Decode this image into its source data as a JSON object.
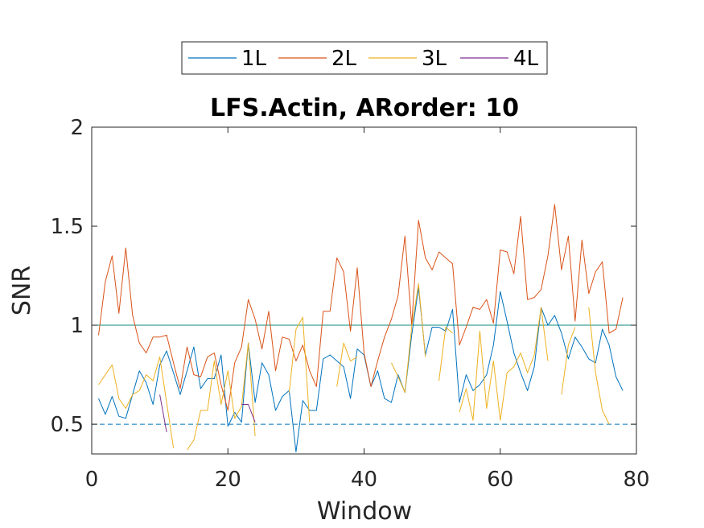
{
  "chart_data": {
    "type": "line",
    "title": "LFS.Actin, ARorder: 10",
    "xlabel": "Window",
    "ylabel": "SNR",
    "xlim": [
      0,
      80
    ],
    "ylim": [
      0.35,
      2.0
    ],
    "xticks": [
      0,
      20,
      40,
      60,
      80
    ],
    "yticks": [
      0.5,
      1,
      1.5,
      2
    ],
    "xtick_labels": [
      "0",
      "20",
      "40",
      "60",
      "80"
    ],
    "ytick_labels": [
      "0.5",
      "1",
      "1.5",
      "2"
    ],
    "grid": false,
    "legend_placement": "top-center outside",
    "reference_lines": [
      {
        "y": 2.0,
        "style": "dashed",
        "color": "#0072BD"
      },
      {
        "y": 1.0,
        "style": "solid",
        "color": "#0E8A7A"
      },
      {
        "y": 0.5,
        "style": "dashed",
        "color": "#0072BD"
      }
    ],
    "series": [
      {
        "name": "1L",
        "color": "#0072BD",
        "x": [
          1,
          2,
          3,
          4,
          5,
          6,
          7,
          8,
          9,
          10,
          11,
          12,
          13,
          14,
          15,
          16,
          17,
          18,
          19,
          20,
          21,
          22,
          23,
          24,
          25,
          26,
          27,
          28,
          29,
          30,
          31,
          32,
          33,
          34,
          35,
          36,
          37,
          38,
          39,
          40,
          41,
          42,
          43,
          44,
          45,
          46,
          47,
          48,
          49,
          50,
          51,
          52,
          53,
          54,
          55,
          56,
          57,
          58,
          59,
          60,
          61,
          62,
          63,
          64,
          65,
          66,
          67,
          68,
          69,
          70,
          71,
          72,
          73,
          74,
          75,
          76,
          77,
          78
        ],
        "y": [
          0.63,
          0.55,
          0.64,
          0.54,
          0.53,
          0.65,
          0.77,
          0.71,
          0.6,
          0.8,
          0.87,
          0.76,
          0.65,
          0.77,
          0.89,
          0.68,
          0.73,
          0.73,
          0.85,
          0.49,
          0.56,
          0.51,
          0.91,
          0.61,
          0.81,
          0.75,
          0.57,
          0.64,
          0.67,
          0.36,
          0.62,
          0.57,
          0.57,
          0.83,
          0.85,
          0.82,
          0.79,
          0.63,
          0.88,
          0.85,
          0.69,
          0.77,
          0.63,
          0.61,
          0.75,
          0.66,
          0.95,
          1.19,
          0.85,
          0.99,
          0.99,
          0.97,
          1.08,
          0.61,
          0.75,
          0.67,
          0.7,
          0.75,
          0.9,
          1.17,
          1.02,
          0.86,
          0.76,
          0.67,
          0.79,
          1.09,
          1.0,
          1.05,
          0.96,
          0.83,
          0.94,
          0.89,
          0.83,
          0.81,
          0.98,
          0.9,
          0.74,
          0.67
        ]
      },
      {
        "name": "2L",
        "color": "#D95319",
        "x": [
          1,
          2,
          3,
          4,
          5,
          6,
          7,
          8,
          9,
          10,
          11,
          12,
          13,
          14,
          15,
          16,
          17,
          18,
          19,
          20,
          21,
          22,
          23,
          24,
          25,
          26,
          27,
          28,
          29,
          30,
          31,
          32,
          33,
          34,
          35,
          36,
          37,
          38,
          39,
          40,
          41,
          42,
          43,
          44,
          45,
          46,
          47,
          48,
          49,
          50,
          51,
          52,
          53,
          54,
          55,
          56,
          57,
          58,
          59,
          60,
          61,
          62,
          63,
          64,
          65,
          66,
          67,
          68,
          69,
          70,
          71,
          72,
          73,
          74,
          75,
          76,
          77,
          78
        ],
        "y": [
          0.95,
          1.22,
          1.35,
          1.06,
          1.39,
          1.05,
          0.91,
          0.86,
          0.94,
          0.94,
          0.95,
          0.81,
          0.68,
          0.89,
          0.75,
          0.74,
          0.84,
          0.86,
          0.7,
          0.57,
          0.81,
          0.89,
          1.13,
          1.03,
          0.88,
          1.07,
          0.77,
          0.94,
          0.93,
          0.82,
          0.9,
          0.77,
          0.69,
          1.07,
          1.07,
          1.34,
          1.27,
          0.97,
          1.29,
          0.86,
          0.69,
          0.82,
          0.94,
          1.03,
          1.15,
          1.45,
          1.0,
          1.53,
          1.34,
          1.28,
          1.37,
          1.34,
          1.31,
          0.9,
          0.99,
          1.09,
          1.08,
          1.13,
          1.01,
          1.38,
          1.37,
          1.26,
          1.55,
          1.13,
          1.14,
          1.18,
          1.35,
          1.61,
          1.28,
          1.45,
          1.02,
          1.43,
          1.16,
          1.27,
          1.32,
          0.96,
          0.98,
          1.14
        ]
      },
      {
        "name": "3L",
        "color": "#EDB120",
        "x": [
          1,
          2,
          3,
          4,
          5,
          6,
          7,
          8,
          9,
          10,
          11,
          12,
          null,
          14,
          15,
          16,
          17,
          18,
          19,
          20,
          21,
          22,
          23,
          24,
          null,
          29,
          30,
          31,
          32,
          null,
          36,
          37,
          38,
          39,
          null,
          44,
          45,
          46,
          47,
          48,
          49,
          null,
          51,
          52,
          53,
          null,
          54,
          55,
          56,
          57,
          58,
          59,
          60,
          61,
          62,
          63,
          64,
          65,
          66,
          67,
          68,
          null,
          69,
          70,
          71,
          null,
          73,
          74,
          75,
          76
        ],
        "y": [
          0.7,
          0.75,
          0.8,
          0.63,
          0.58,
          0.65,
          0.67,
          0.75,
          0.72,
          0.84,
          0.61,
          0.38,
          null,
          0.37,
          0.42,
          0.57,
          0.57,
          0.82,
          0.6,
          0.77,
          0.53,
          0.59,
          0.91,
          0.44,
          null,
          0.66,
          0.98,
          1.04,
          0.51,
          null,
          0.69,
          0.91,
          0.82,
          0.84,
          null,
          0.81,
          0.74,
          0.66,
          0.99,
          1.21,
          0.84,
          null,
          0.72,
          0.99,
          0.96,
          null,
          0.56,
          0.68,
          0.52,
          0.97,
          0.58,
          0.82,
          0.52,
          0.76,
          0.79,
          0.86,
          0.76,
          0.85,
          1.09,
          0.82,
          null,
          null,
          0.65,
          0.9,
          0.99,
          null,
          1.09,
          0.76,
          0.57,
          0.5
        ]
      },
      {
        "name": "4L",
        "color": "#7E2F8E",
        "x": [
          10,
          11,
          null,
          22,
          23,
          24
        ],
        "y": [
          0.65,
          0.46,
          null,
          0.6,
          0.6,
          0.51
        ]
      }
    ]
  }
}
